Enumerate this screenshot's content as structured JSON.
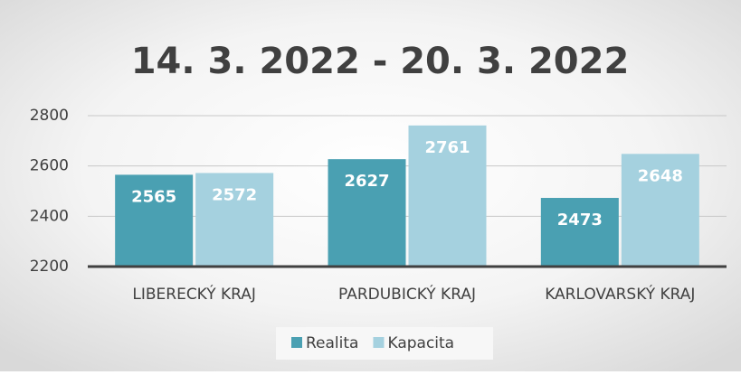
{
  "chart_data": {
    "type": "bar",
    "title": "14. 3. 2022 - 20. 3. 2022",
    "categories": [
      "LIBERECKÝ KRAJ",
      "PARDUBICKÝ KRAJ",
      "KARLOVARSKÝ KRAJ"
    ],
    "series": [
      {
        "name": "Realita",
        "color": "#4aa0b2",
        "values": [
          2565,
          2627,
          2473
        ]
      },
      {
        "name": "Kapacita",
        "color": "#a5d1df",
        "values": [
          2572,
          2761,
          2648
        ]
      }
    ],
    "ylim": [
      2200,
      2800
    ],
    "yticks": [
      2200,
      2400,
      2600,
      2800
    ],
    "grid": true,
    "legend": "bottom"
  }
}
